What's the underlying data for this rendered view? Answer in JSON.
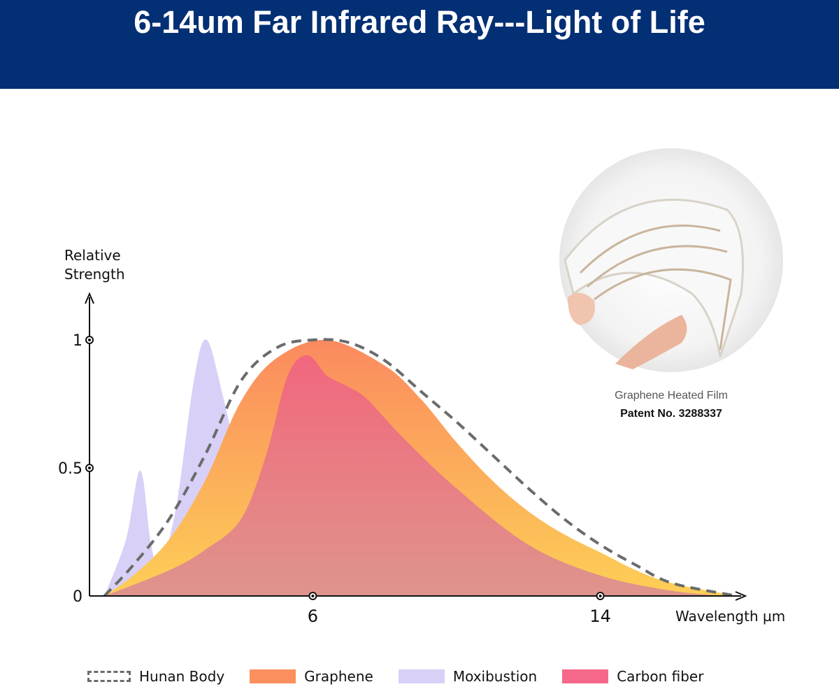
{
  "header": {
    "title": "6-14um Far Infrared Ray---Light of Life"
  },
  "photo": {
    "caption": "Graphene Heated Film",
    "patent": "Patent No. 3288337"
  },
  "chart_data": {
    "type": "area",
    "title": "6-14um Far Infrared Ray---Light of Life",
    "xlabel": "Wavelength µm",
    "ylabel_lines": [
      "Relative",
      "Strength"
    ],
    "xlim": [
      0,
      17.8
    ],
    "ylim": [
      0,
      1
    ],
    "x_ticks": [
      {
        "value": 6,
        "label": "6"
      },
      {
        "value": 14,
        "label": "14"
      }
    ],
    "y_ticks": [
      {
        "value": 1,
        "label": "1"
      },
      {
        "value": 0.5,
        "label": "0.5"
      },
      {
        "value": 0,
        "label": "0"
      }
    ],
    "legend_position": "bottom",
    "series": [
      {
        "name": "Moxibustion",
        "key": "moxibustion",
        "color": "#d8d0f6",
        "style": "area",
        "points": [
          [
            0.2,
            0
          ],
          [
            0.8,
            0.22
          ],
          [
            1.2,
            0.49
          ],
          [
            1.5,
            0.2
          ],
          [
            1.75,
            0.12
          ],
          [
            2.2,
            0.35
          ],
          [
            2.7,
            0.85
          ],
          [
            3.05,
            1.0
          ],
          [
            3.5,
            0.78
          ],
          [
            4,
            0.48
          ],
          [
            4.5,
            0.3
          ],
          [
            5,
            0.2
          ],
          [
            6,
            0.1
          ],
          [
            7,
            0.04
          ],
          [
            8,
            0
          ]
        ]
      },
      {
        "name": "Graphene",
        "key": "graphene",
        "color": "#fb8f5e",
        "color2": "#fdcb58",
        "style": "area",
        "points": [
          [
            0.2,
            0
          ],
          [
            1,
            0.08
          ],
          [
            2,
            0.22
          ],
          [
            3,
            0.45
          ],
          [
            4,
            0.76
          ],
          [
            5,
            0.93
          ],
          [
            6.4,
            1.0
          ],
          [
            8,
            0.9
          ],
          [
            9,
            0.77
          ],
          [
            10,
            0.6
          ],
          [
            11,
            0.45
          ],
          [
            12,
            0.33
          ],
          [
            13,
            0.24
          ],
          [
            14,
            0.17
          ],
          [
            15,
            0.1
          ],
          [
            16,
            0.05
          ],
          [
            17.8,
            0
          ]
        ]
      },
      {
        "name": "Carbon fiber",
        "key": "carbon",
        "color": "#f0607f",
        "style": "area",
        "points": [
          [
            0.2,
            0
          ],
          [
            2,
            0.1
          ],
          [
            3,
            0.18
          ],
          [
            4,
            0.3
          ],
          [
            4.7,
            0.55
          ],
          [
            5.3,
            0.86
          ],
          [
            5.85,
            0.94
          ],
          [
            6.4,
            0.86
          ],
          [
            6.95,
            0.82
          ],
          [
            7.5,
            0.77
          ],
          [
            8.5,
            0.62
          ],
          [
            10,
            0.42
          ],
          [
            12,
            0.2
          ],
          [
            14,
            0.08
          ],
          [
            16,
            0.02
          ],
          [
            17.5,
            0
          ]
        ]
      },
      {
        "name": "Hunan Body",
        "key": "human",
        "color": "#6b6b6b",
        "style": "dashed-line",
        "points": [
          [
            0.2,
            0
          ],
          [
            1,
            0.12
          ],
          [
            2,
            0.3
          ],
          [
            3,
            0.55
          ],
          [
            4,
            0.84
          ],
          [
            5,
            0.97
          ],
          [
            6,
            1.0
          ],
          [
            7,
            0.99
          ],
          [
            8,
            0.92
          ],
          [
            9,
            0.8
          ],
          [
            10,
            0.68
          ],
          [
            11,
            0.55
          ],
          [
            12,
            0.42
          ],
          [
            13,
            0.3
          ],
          [
            14,
            0.2
          ],
          [
            15,
            0.12
          ],
          [
            16,
            0.05
          ],
          [
            17.8,
            0
          ]
        ]
      }
    ],
    "legend": [
      "Hunan Body",
      "Graphene",
      "Moxibustion",
      "Carbon fiber"
    ]
  }
}
